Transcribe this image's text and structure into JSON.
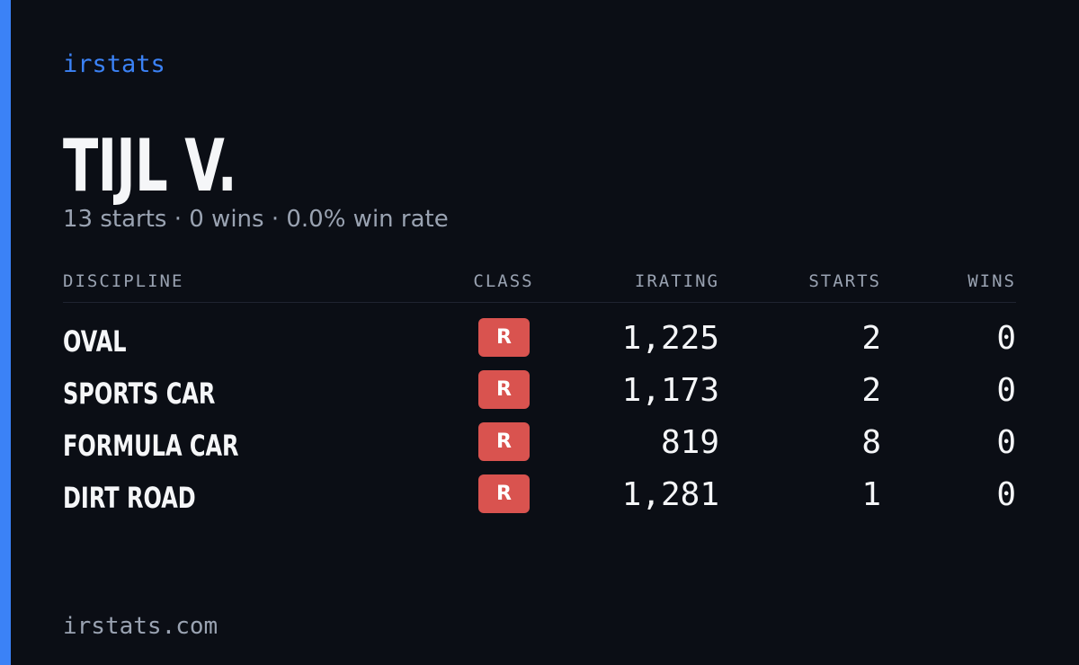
{
  "brand": "irstats",
  "driver": {
    "name": "TIJL V.",
    "summary": "13 starts · 0 wins · 0.0% win rate"
  },
  "table": {
    "headers": [
      "DISCIPLINE",
      "CLASS",
      "IRATING",
      "STARTS",
      "WINS"
    ],
    "rows": [
      [
        "OVAL",
        "R",
        "1,225",
        "2",
        "0"
      ],
      [
        "SPORTS CAR",
        "R",
        "1,173",
        "2",
        "0"
      ],
      [
        "FORMULA CAR",
        "R",
        "819",
        "8",
        "0"
      ],
      [
        "DIRT ROAD",
        "R",
        "1,281",
        "1",
        "0"
      ]
    ]
  },
  "footer": "irstats.com"
}
